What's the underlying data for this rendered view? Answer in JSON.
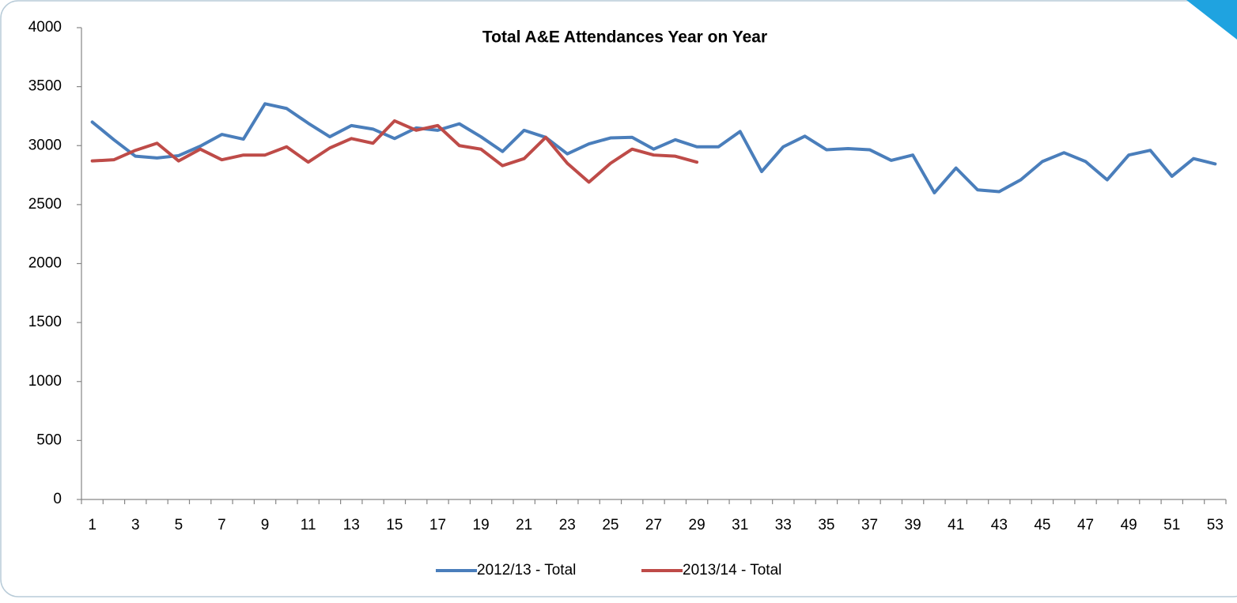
{
  "chart_data": {
    "type": "line",
    "title": "Total A&E Attendances Year on Year",
    "categories": [
      1,
      null,
      3,
      null,
      5,
      null,
      7,
      null,
      9,
      null,
      11,
      null,
      13,
      null,
      15,
      null,
      17,
      null,
      19,
      null,
      21,
      null,
      23,
      null,
      25,
      null,
      27,
      null,
      29,
      null,
      31,
      null,
      33,
      null,
      35,
      null,
      37,
      null,
      39,
      null,
      41,
      null,
      43,
      null,
      45,
      null,
      47,
      null,
      49,
      null,
      51,
      null,
      53
    ],
    "series": [
      {
        "name": "2012/13 - Total",
        "color": "#4a7ebb",
        "values": [
          3200,
          3050,
          2910,
          2895,
          2915,
          2995,
          3095,
          3055,
          3355,
          3315,
          3190,
          3075,
          3170,
          3140,
          3060,
          3150,
          3130,
          3185,
          3075,
          2950,
          3130,
          3070,
          2930,
          3015,
          3065,
          3070,
          2970,
          3050,
          2990,
          2990,
          3120,
          2780,
          2990,
          3080,
          2965,
          2975,
          2965,
          2875,
          2920,
          2600,
          2810,
          2625,
          2610,
          2710,
          2865,
          2940,
          2865,
          2710,
          2920,
          2960,
          2740,
          2890,
          2845
        ]
      },
      {
        "name": "2013/14 - Total",
        "color": "#be4b48",
        "values": [
          2870,
          2880,
          2960,
          3020,
          2870,
          2970,
          2880,
          2920,
          2920,
          2990,
          2860,
          2980,
          3060,
          3020,
          3210,
          3130,
          3170,
          3000,
          2970,
          2830,
          2890,
          3070,
          2850,
          2690,
          2850,
          2970,
          2920,
          2910,
          2860,
          null,
          null,
          null,
          null,
          null,
          null,
          null,
          null,
          null,
          null,
          null,
          null,
          null,
          null,
          null,
          null,
          null,
          null,
          null,
          null,
          null,
          null,
          null,
          null
        ]
      }
    ],
    "ylim": [
      0,
      4000
    ],
    "yticks": [
      0,
      500,
      1000,
      1500,
      2000,
      2500,
      3000,
      3500,
      4000
    ],
    "grid": false,
    "legend": "bottom"
  }
}
